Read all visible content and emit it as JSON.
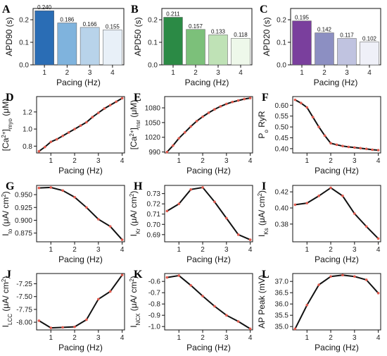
{
  "chart_data": [
    {
      "id": "A",
      "type": "bar",
      "letter": "A",
      "xlabel": "Pacing (Hz)",
      "ylabel": "APD90 (s)",
      "categories": [
        "1",
        "2",
        "3",
        "4"
      ],
      "values": [
        0.24,
        0.186,
        0.166,
        0.155
      ],
      "value_labels": [
        "0.240",
        "0.186",
        "0.166",
        "0.155"
      ],
      "colors": [
        "#2a6db5",
        "#7fb3dd",
        "#b8d3ea",
        "#e8f0f8"
      ],
      "ylim": [
        0,
        0.25
      ],
      "yticks": [
        0.0,
        0.1,
        0.2
      ],
      "ytick_labels": [
        "0.0",
        "0.1",
        "0.2"
      ]
    },
    {
      "id": "B",
      "type": "bar",
      "letter": "B",
      "xlabel": "Pacing (Hz)",
      "ylabel": "APD50 (s)",
      "categories": [
        "1",
        "2",
        "3",
        "4"
      ],
      "values": [
        0.211,
        0.157,
        0.133,
        0.118
      ],
      "value_labels": [
        "0.211",
        "0.157",
        "0.133",
        "0.118"
      ],
      "colors": [
        "#2b8a45",
        "#7cc07a",
        "#bfe2b6",
        "#eef8ea"
      ],
      "ylim": [
        0,
        0.25
      ],
      "yticks": [
        0.0,
        0.1,
        0.2
      ],
      "ytick_labels": [
        "0.0",
        "0.1",
        "0.2"
      ]
    },
    {
      "id": "C",
      "type": "bar",
      "letter": "C",
      "xlabel": "Pacing (Hz)",
      "ylabel": "APD20 (s)",
      "categories": [
        "1",
        "2",
        "3",
        "4"
      ],
      "values": [
        0.195,
        0.142,
        0.117,
        0.102
      ],
      "value_labels": [
        "0.195",
        "0.142",
        "0.117",
        "0.102"
      ],
      "colors": [
        "#7a3f9d",
        "#8c8fc2",
        "#c0c3e0",
        "#eff0f8"
      ],
      "ylim": [
        0,
        0.25
      ],
      "yticks": [
        0.0,
        0.1,
        0.2
      ],
      "ytick_labels": [
        "0.0",
        "0.1",
        "0.2"
      ]
    },
    {
      "id": "D",
      "type": "line",
      "letter": "D",
      "xlabel": "Pacing (Hz)",
      "ylabel_main": "[Ca",
      "ylabel_sup": "2+",
      "ylabel_mid": "]",
      "ylabel_sub": "myo",
      "ylabel_tail": " (μM)",
      "x": [
        0.5,
        0.75,
        1.0,
        1.25,
        1.5,
        1.75,
        2.0,
        2.25,
        2.5,
        2.75,
        3.0,
        3.25,
        3.5,
        3.75,
        4.0
      ],
      "y": [
        0.74,
        0.79,
        0.85,
        0.88,
        0.92,
        0.96,
        1.0,
        1.04,
        1.08,
        1.14,
        1.19,
        1.24,
        1.28,
        1.32,
        1.36
      ],
      "xlim": [
        0.4,
        4.1
      ],
      "ylim": [
        0.72,
        1.38
      ],
      "xticks": [
        1,
        2,
        3,
        4
      ],
      "yticks": [
        0.8,
        1.0,
        1.2
      ],
      "ytick_labels": [
        "0.8",
        "1.0",
        "1.2"
      ]
    },
    {
      "id": "E",
      "type": "line",
      "letter": "E",
      "xlabel": "Pacing (Hz)",
      "ylabel_main": "[Ca",
      "ylabel_sup": "2+",
      "ylabel_mid": "]",
      "ylabel_sub": "nsr",
      "ylabel_tail": " (μM)",
      "x": [
        0.5,
        0.75,
        1.0,
        1.25,
        1.5,
        1.75,
        2.0,
        2.25,
        2.5,
        2.75,
        3.0,
        3.25,
        3.5,
        3.75,
        4.0
      ],
      "y": [
        990,
        1003,
        1018,
        1030,
        1042,
        1053,
        1062,
        1070,
        1077,
        1083,
        1088,
        1092,
        1095,
        1098,
        1100
      ],
      "xlim": [
        0.4,
        4.1
      ],
      "ylim": [
        988,
        1103
      ],
      "xticks": [
        1,
        2,
        3,
        4
      ],
      "yticks": [
        990,
        1020,
        1050,
        1080
      ],
      "ytick_labels": [
        "990",
        "1020",
        "1050",
        "1080"
      ]
    },
    {
      "id": "F",
      "type": "line",
      "letter": "F",
      "xlabel": "Pacing (Hz)",
      "ylabel_main": "P",
      "ylabel_sub": "o",
      "ylabel_tail": " RyR",
      "x": [
        0.5,
        0.75,
        1.0,
        1.25,
        1.5,
        1.75,
        2.0,
        2.25,
        2.5,
        2.75,
        3.0,
        3.25,
        3.5,
        3.75,
        4.0
      ],
      "y": [
        0.625,
        0.61,
        0.59,
        0.545,
        0.5,
        0.46,
        0.425,
        0.418,
        0.412,
        0.408,
        0.405,
        0.402,
        0.399,
        0.395,
        0.393
      ],
      "xlim": [
        0.4,
        4.1
      ],
      "ylim": [
        0.38,
        0.64
      ],
      "xticks": [
        1,
        2,
        3,
        4
      ],
      "yticks": [
        0.4,
        0.45,
        0.5,
        0.55,
        0.6
      ],
      "ytick_labels": [
        "0.40",
        "0.45",
        "0.50",
        "0.55",
        "0.60"
      ]
    },
    {
      "id": "G",
      "type": "line",
      "letter": "G",
      "xlabel": "Pacing (Hz)",
      "ylabel_main": "I",
      "ylabel_sub": "to",
      "ylabel_tail": " (μA/ cm",
      "ylabel_sup2": "2",
      "ylabel_end": ")",
      "x": [
        0.5,
        1.0,
        1.5,
        2.0,
        2.5,
        3.0,
        3.5,
        4.0
      ],
      "y": [
        0.963,
        0.964,
        0.958,
        0.945,
        0.925,
        0.902,
        0.888,
        0.862
      ],
      "xlim": [
        0.4,
        4.1
      ],
      "ylim": [
        0.858,
        0.968
      ],
      "xticks": [
        1,
        2,
        3,
        4
      ],
      "yticks": [
        0.875,
        0.9,
        0.925,
        0.95
      ],
      "ytick_labels": [
        "0.875",
        "0.900",
        "0.925",
        "0.950"
      ]
    },
    {
      "id": "H",
      "type": "line",
      "letter": "H",
      "xlabel": "Pacing (Hz)",
      "ylabel_main": "I",
      "ylabel_sub": "Kr",
      "ylabel_tail": " (μA/ cm",
      "ylabel_sup2": "2",
      "ylabel_end": ")",
      "x": [
        0.5,
        1.0,
        1.5,
        2.0,
        2.5,
        3.0,
        3.5,
        4.0
      ],
      "y": [
        0.713,
        0.72,
        0.734,
        0.736,
        0.722,
        0.706,
        0.69,
        0.685
      ],
      "xlim": [
        0.4,
        4.1
      ],
      "ylim": [
        0.683,
        0.738
      ],
      "xticks": [
        1,
        2,
        3,
        4
      ],
      "yticks": [
        0.69,
        0.7,
        0.71,
        0.72,
        0.73
      ],
      "ytick_labels": [
        "0.69",
        "0.70",
        "0.71",
        "0.72",
        "0.73"
      ]
    },
    {
      "id": "I",
      "type": "line",
      "letter": "I",
      "xlabel": "Pacing (Hz)",
      "ylabel_main": "I",
      "ylabel_sub": "Ks",
      "ylabel_tail": " (μA/ cm",
      "ylabel_sup2": "2",
      "ylabel_end": ")",
      "x": [
        0.5,
        1.0,
        1.5,
        2.0,
        2.5,
        3.0,
        3.5,
        4.0
      ],
      "y": [
        0.404,
        0.406,
        0.415,
        0.425,
        0.415,
        0.393,
        0.377,
        0.362
      ],
      "xlim": [
        0.4,
        4.1
      ],
      "ylim": [
        0.358,
        0.428
      ],
      "xticks": [
        1,
        2,
        3,
        4
      ],
      "yticks": [
        0.38,
        0.4,
        0.42
      ],
      "ytick_labels": [
        "0.38",
        "0.40",
        "0.42"
      ]
    },
    {
      "id": "J",
      "type": "line",
      "letter": "J",
      "xlabel": "Pacing (Hz)",
      "ylabel_main": "I",
      "ylabel_sub": "LCC",
      "ylabel_tail": " (μA/ cm",
      "ylabel_sup2": "2",
      "ylabel_end": ")",
      "x": [
        0.5,
        1.0,
        1.5,
        2.0,
        2.5,
        3.0,
        3.5,
        4.0
      ],
      "y": [
        -7.97,
        -8.11,
        -8.1,
        -8.09,
        -7.95,
        -7.55,
        -7.4,
        -7.08
      ],
      "xlim": [
        0.4,
        4.1
      ],
      "ylim": [
        -8.15,
        -7.05
      ],
      "xticks": [
        1,
        2,
        3,
        4
      ],
      "yticks": [
        -8.0,
        -7.75,
        -7.5,
        -7.25
      ],
      "ytick_labels": [
        "-8.00",
        "-7.75",
        "-7.50",
        "-7.25"
      ]
    },
    {
      "id": "K",
      "type": "line",
      "letter": "K",
      "xlabel": "Pacing (Hz)",
      "ylabel_main": "I",
      "ylabel_sub": "NCX",
      "ylabel_tail": " (μA/ cm",
      "ylabel_sup2": "2",
      "ylabel_end": ")",
      "x": [
        0.5,
        1.0,
        1.5,
        2.0,
        2.5,
        3.0,
        3.5,
        4.0
      ],
      "y": [
        -0.565,
        -0.548,
        -0.635,
        -0.73,
        -0.82,
        -0.9,
        -0.955,
        -1.02
      ],
      "xlim": [
        0.4,
        4.1
      ],
      "ylim": [
        -1.03,
        -0.53
      ],
      "xticks": [
        1,
        2,
        3,
        4
      ],
      "yticks": [
        -1.0,
        -0.9,
        -0.8,
        -0.7,
        -0.6
      ],
      "ytick_labels": [
        "-1.0",
        "-0.9",
        "-0.8",
        "-0.7",
        "-0.6"
      ]
    },
    {
      "id": "L",
      "type": "line",
      "letter": "L",
      "xlabel": "Pacing (Hz)",
      "ylabel": "AP Peak (mV)",
      "x": [
        0.5,
        1.0,
        1.5,
        2.0,
        2.5,
        3.0,
        3.5,
        4.0
      ],
      "y": [
        34.9,
        35.95,
        36.85,
        37.22,
        37.28,
        37.22,
        37.07,
        36.48
      ],
      "xlim": [
        0.4,
        4.1
      ],
      "ylim": [
        34.85,
        37.35
      ],
      "xticks": [
        1,
        2,
        3,
        4
      ],
      "yticks": [
        35.0,
        35.5,
        36.0,
        36.5,
        37.0
      ],
      "ytick_labels": [
        "35.0",
        "35.5",
        "36.0",
        "36.5",
        "37.0"
      ]
    }
  ],
  "colors": {
    "line": "#111111",
    "marker": "#e05a4e",
    "axis": "#111111"
  }
}
